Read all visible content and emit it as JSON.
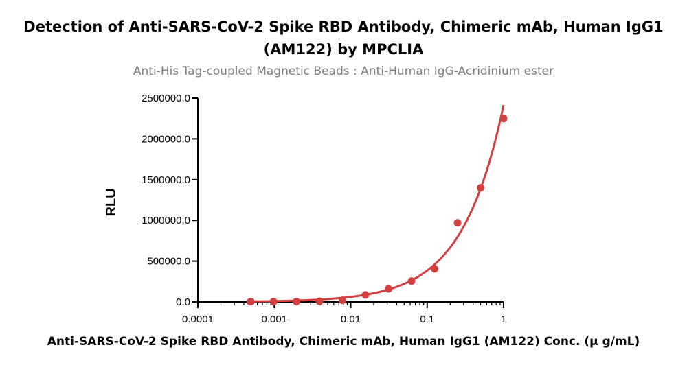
{
  "chart_data": {
    "type": "scatter",
    "title_line_1": "Detection of Anti-SARS-CoV-2 Spike RBD Antibody, Chimeric mAb, Human IgG1",
    "title_line_2": "(AM122) by MPCLIA",
    "subtitle": "Anti-His Tag-coupled Magnetic Beads : Anti-Human IgG-Acridinium ester",
    "xlabel": "Anti-SARS-CoV-2 Spike RBD Antibody, Chimeric mAb, Human IgG1 (AM122) Conc. (μ g/mL)",
    "ylabel": "RLU",
    "x_scale": "log",
    "xlim": [
      0.0001,
      1
    ],
    "ylim": [
      0,
      2500000
    ],
    "x_ticks": [
      0.0001,
      0.001,
      0.01,
      0.1,
      1
    ],
    "x_tick_labels": [
      "0.0001",
      "0.001",
      "0.01",
      "0.1",
      "1"
    ],
    "y_ticks": [
      0,
      500000,
      1000000,
      1500000,
      2000000,
      2500000
    ],
    "y_tick_labels": [
      "0.0",
      "500000.0",
      "1000000.0",
      "1500000.0",
      "2000000.0",
      "2500000.0"
    ],
    "series": [
      {
        "color": "#d23f3f",
        "x": [
          0.000488,
          0.000977,
          0.00195,
          0.0039,
          0.0078,
          0.0156,
          0.03125,
          0.0625,
          0.125,
          0.25,
          0.5,
          1
        ],
        "y": [
          2000,
          3000,
          5000,
          8000,
          20000,
          85000,
          160000,
          255000,
          405000,
          970000,
          1400000,
          2250000
        ],
        "fit_curve": true
      }
    ],
    "grid": false,
    "legend": "none"
  }
}
